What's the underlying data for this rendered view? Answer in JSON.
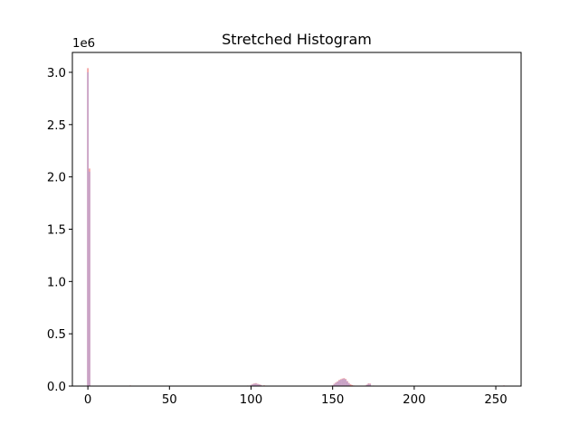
{
  "chart_data": {
    "type": "bar",
    "title": "Stretched Histogram",
    "xlabel": "",
    "ylabel": "",
    "y_offset_label": "1e6",
    "xlim": [
      -9.5,
      265.5
    ],
    "ylim": [
      0,
      3.19
    ],
    "y_scale": 1000000,
    "x_ticks": [
      0,
      50,
      100,
      150,
      200,
      250
    ],
    "y_ticks": [
      0.0,
      0.5,
      1.0,
      1.5,
      2.0,
      2.5,
      3.0
    ],
    "x_tick_labels": [
      "0",
      "50",
      "100",
      "150",
      "200",
      "250"
    ],
    "y_tick_labels": [
      "0.0",
      "0.5",
      "1.0",
      "1.5",
      "2.0",
      "2.5",
      "3.0"
    ],
    "grid": false,
    "colors": {
      "red_series": "#f4a3a3",
      "blue_series": "#b9a3d3",
      "overlap": "#d88fb7"
    },
    "series": [
      {
        "color_key": "red_series",
        "x": [
          0,
          1,
          25,
          26,
          27,
          98,
          100,
          101,
          102,
          103,
          104,
          105,
          106,
          108,
          110,
          145,
          150,
          151,
          152,
          153,
          154,
          155,
          156,
          157,
          158,
          159,
          160,
          161,
          162,
          163,
          165,
          168,
          170,
          171,
          172,
          173,
          175,
          253,
          255
        ],
        "values": [
          3040000,
          2080000,
          4000,
          6000,
          3000,
          5000,
          12000,
          20000,
          25000,
          28000,
          22000,
          18000,
          12000,
          7000,
          4000,
          4000,
          8000,
          22000,
          35000,
          45000,
          58000,
          66000,
          72000,
          76000,
          68000,
          48000,
          30000,
          18000,
          10000,
          5000,
          4000,
          4000,
          5000,
          14000,
          26000,
          24000,
          5000,
          3000,
          6000
        ]
      },
      {
        "color_key": "blue_series",
        "x": [
          0,
          1,
          25,
          26,
          100,
          101,
          102,
          103,
          104,
          105,
          106,
          150,
          151,
          152,
          153,
          154,
          155,
          156,
          157,
          158,
          159,
          160,
          171,
          172,
          173,
          255
        ],
        "values": [
          3000000,
          2050000,
          3000,
          4000,
          10000,
          17000,
          22000,
          24000,
          19000,
          15000,
          9000,
          7000,
          19000,
          30000,
          40000,
          52000,
          60000,
          66000,
          70000,
          62000,
          44000,
          26000,
          12000,
          22000,
          20000,
          5000
        ]
      }
    ]
  }
}
